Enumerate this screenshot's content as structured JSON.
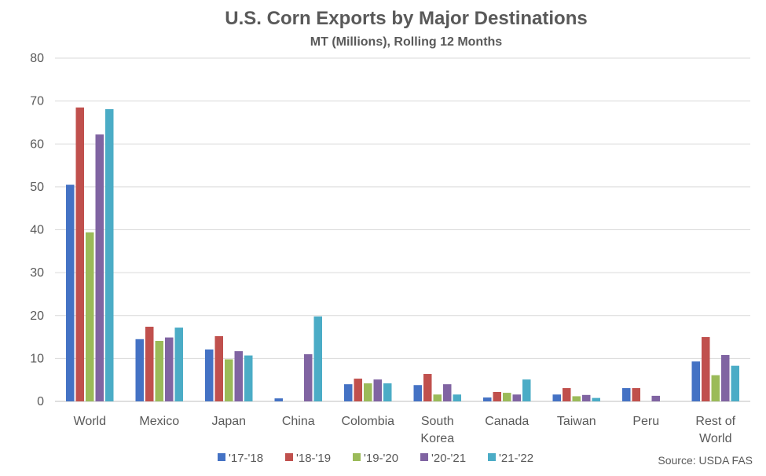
{
  "chart_data": {
    "type": "bar",
    "title": "U.S. Corn Exports by Major Destinations",
    "subtitle": "MT (Millions), Rolling 12 Months",
    "source": "Source: USDA FAS",
    "xlabel": "",
    "ylabel": "",
    "ylim": [
      0,
      80
    ],
    "yticks": [
      0,
      10,
      20,
      30,
      40,
      50,
      60,
      70,
      80
    ],
    "grid": true,
    "legend_position": "bottom",
    "categories": [
      "World",
      "Mexico",
      "Japan",
      "China",
      "Colombia",
      "South Korea",
      "Canada",
      "Taiwan",
      "Peru",
      "Rest of World"
    ],
    "category_labels": [
      [
        "World"
      ],
      [
        "Mexico"
      ],
      [
        "Japan"
      ],
      [
        "China"
      ],
      [
        "Colombia"
      ],
      [
        "South",
        "Korea"
      ],
      [
        "Canada"
      ],
      [
        "Taiwan"
      ],
      [
        "Peru"
      ],
      [
        "Rest of",
        "World"
      ]
    ],
    "series": [
      {
        "name": "'17-'18",
        "color": "#4472C4",
        "values": [
          50.5,
          14.5,
          12.1,
          0.7,
          4.0,
          3.8,
          0.9,
          1.6,
          3.1,
          9.3
        ]
      },
      {
        "name": "'18-'19",
        "color": "#C0504D",
        "values": [
          68.5,
          17.4,
          15.2,
          0.0,
          5.3,
          6.4,
          2.2,
          3.1,
          3.1,
          15.0
        ]
      },
      {
        "name": "'19-'20",
        "color": "#9BBB59",
        "values": [
          39.4,
          14.1,
          9.8,
          0.0,
          4.2,
          1.6,
          2.0,
          1.2,
          0.0,
          6.1
        ]
      },
      {
        "name": "'20-'21",
        "color": "#8064A2",
        "values": [
          62.2,
          14.9,
          11.7,
          11.0,
          5.1,
          4.0,
          1.6,
          1.5,
          1.3,
          10.8
        ]
      },
      {
        "name": "'21-'22",
        "color": "#4BACC6",
        "values": [
          68.1,
          17.2,
          10.7,
          19.8,
          4.2,
          1.6,
          5.1,
          0.8,
          0.0,
          8.3
        ]
      }
    ]
  }
}
